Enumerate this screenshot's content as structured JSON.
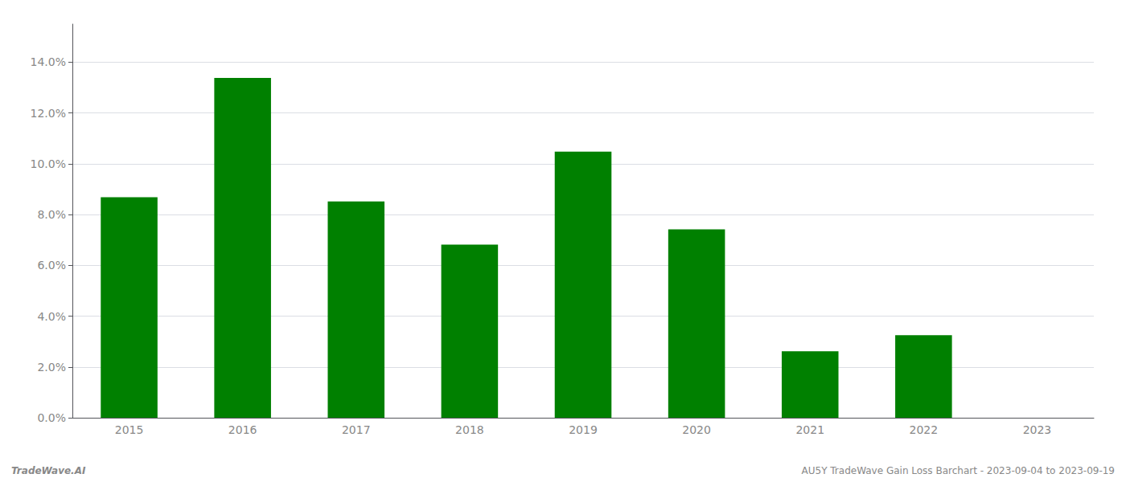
{
  "chart_data": {
    "type": "bar",
    "categories": [
      "2015",
      "2016",
      "2017",
      "2018",
      "2019",
      "2020",
      "2021",
      "2022",
      "2023"
    ],
    "values": [
      0.0868,
      0.1338,
      0.0852,
      0.0682,
      0.1048,
      0.0742,
      0.0262,
      0.0325,
      0.0
    ],
    "color": "#008000",
    "ylim": [
      0,
      0.155
    ],
    "yticks": [
      {
        "value": 0.0,
        "label": "0.0%"
      },
      {
        "value": 0.02,
        "label": "2.0%"
      },
      {
        "value": 0.04,
        "label": "4.0%"
      },
      {
        "value": 0.06,
        "label": "6.0%"
      },
      {
        "value": 0.08,
        "label": "8.0%"
      },
      {
        "value": 0.1,
        "label": "10.0%"
      },
      {
        "value": 0.12,
        "label": "12.0%"
      },
      {
        "value": 0.14,
        "label": "14.0%"
      }
    ],
    "grid": true,
    "annotations": [
      "TradeWave.AI",
      "AU5Y TradeWave Gain Loss Barchart - 2023-09-04 to 2023-09-19"
    ]
  }
}
